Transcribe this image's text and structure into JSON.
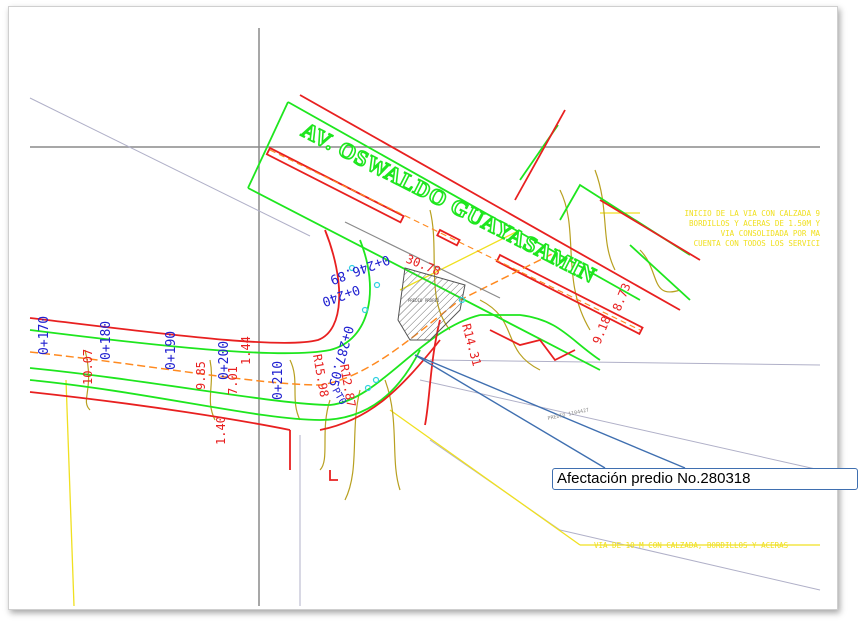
{
  "street_name": "AV. OSWALDO GUAYASAMIN",
  "callout_text": "Afectación predio No.280318",
  "notes": {
    "top_right": [
      "INICIO DE LA VIA  CON CALZADA 9",
      "BORDILLOS Y ACERAS DE 1.50M Y",
      "VIA CONSOLIDADA POR MA",
      "CUENTA CON TODOS LOS SERVICI"
    ],
    "bottom_right": "VIA DE 10 M CON CALZADA, BORDILLOS Y ACERAS"
  },
  "stations": [
    "0+170",
    "0+180",
    "0+190",
    "0+200",
    "0+210",
    "0+240",
    "0+246.89",
    "0+287.05"
  ],
  "dimensions": [
    "10.07",
    "9.85",
    "7.01",
    "1.44",
    "1.40",
    "R15.98",
    "R12.87",
    "R14.31",
    "30.78",
    "8.73",
    "9.18"
  ],
  "labels": {
    "pc": "PT0",
    "predio_small": "PREDIO 1104427",
    "predio_hatch": "PREDIO PROPIO"
  },
  "colors": {
    "green": "#1ee61e",
    "red": "#e82020",
    "yellow": "#f0e020",
    "olive": "#b8a020",
    "blue": "#2020d0",
    "gray": "#8a8a8a",
    "callout_blue": "#3f6fb0"
  }
}
